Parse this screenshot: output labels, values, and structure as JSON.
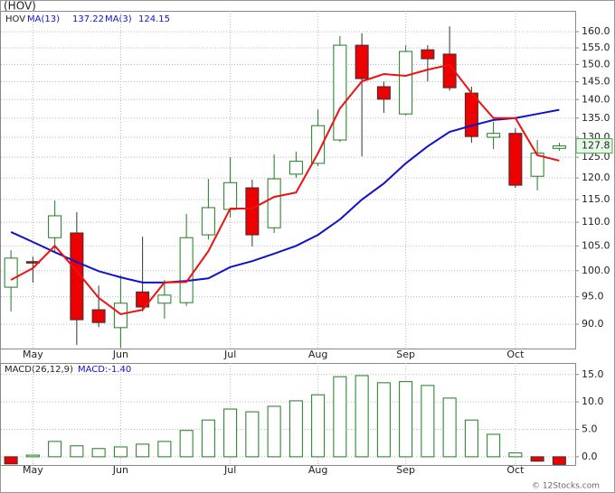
{
  "chart_data": [
    {
      "type": "candlestick",
      "title": "(HOV)",
      "name": "HOV",
      "log_scale": true,
      "grid": true,
      "categories": [
        null,
        "May",
        null,
        null,
        null,
        "Jun",
        null,
        null,
        null,
        null,
        "Jul",
        null,
        null,
        null,
        "Aug",
        null,
        null,
        null,
        "Sep",
        null,
        null,
        null,
        null,
        "Oct",
        null,
        null
      ],
      "open": [
        96.8,
        101.8,
        106.7,
        107.7,
        92.6,
        89.4,
        95.9,
        93.8,
        93.9,
        107.3,
        112.8,
        117.7,
        108.8,
        120.9,
        123.5,
        129.3,
        155.8,
        143.6,
        136.1,
        154.4,
        153.1,
        141.8,
        130.0,
        131.0,
        120.4,
        127.2
      ],
      "high": [
        104.1,
        102.8,
        114.8,
        112.2,
        97.1,
        99.1,
        106.9,
        98.2,
        111.8,
        119.8,
        125.0,
        119.6,
        125.7,
        126.4,
        137.3,
        158.6,
        159.5,
        145.1,
        155.8,
        155.8,
        161.7,
        143.6,
        134.0,
        132.3,
        129.3,
        128.6
      ],
      "low": [
        92.3,
        97.7,
        103.6,
        86.4,
        89.5,
        85.9,
        92.3,
        91.0,
        93.3,
        106.3,
        111.0,
        104.9,
        107.7,
        120.0,
        122.8,
        128.8,
        125.2,
        136.4,
        135.7,
        145.1,
        142.5,
        128.6,
        127.0,
        117.7,
        117.1,
        126.6
      ],
      "close": [
        102.5,
        101.5,
        111.4,
        90.8,
        90.3,
        93.8,
        93.1,
        95.3,
        106.7,
        113.2,
        118.9,
        107.3,
        119.8,
        124.0,
        133.0,
        155.8,
        145.9,
        140.1,
        153.9,
        151.7,
        143.3,
        130.2,
        131.0,
        118.3,
        126.0,
        127.8
      ],
      "up_color": "#1e7b1e",
      "down_color": "#ee0000",
      "series": [
        {
          "name": "MA(13)",
          "color": "#1111cc",
          "values": [
            107.9,
            105.8,
            103.7,
            101.7,
            99.9,
            98.7,
            97.7,
            97.7,
            98.0,
            98.5,
            100.7,
            101.9,
            103.4,
            105.0,
            107.3,
            110.6,
            115.0,
            118.7,
            123.5,
            127.7,
            131.4,
            133.0,
            134.5,
            135.0,
            136.1,
            137.22
          ]
        },
        {
          "name": "MA(3)",
          "color": "#ee1111",
          "values": [
            98.2,
            100.5,
            105.0,
            99.9,
            94.8,
            91.8,
            92.6,
            97.7,
            97.8,
            103.9,
            113.0,
            113.0,
            115.6,
            116.6,
            126.0,
            137.6,
            145.1,
            147.2,
            146.7,
            148.5,
            149.9,
            141.8,
            135.0,
            135.0,
            125.5,
            124.15
          ]
        }
      ],
      "ylim": [
        85.8,
        166.7
      ],
      "yticks": [
        {
          "value": 90,
          "label": "90.0"
        },
        {
          "value": 95,
          "label": "95.0"
        },
        {
          "value": 100,
          "label": "100.0"
        },
        {
          "value": 105,
          "label": "105.0"
        },
        {
          "value": 110,
          "label": "110.0"
        },
        {
          "value": 115,
          "label": "115.0"
        },
        {
          "value": 120,
          "label": "120.0"
        },
        {
          "value": 125,
          "label": "125.0"
        },
        {
          "value": 130,
          "label": "130.0"
        },
        {
          "value": 135,
          "label": "135.0"
        },
        {
          "value": 140,
          "label": "140.0"
        },
        {
          "value": 145,
          "label": "145.0"
        },
        {
          "value": 150,
          "label": "150.0"
        },
        {
          "value": 155,
          "label": "155.0"
        },
        {
          "value": 160,
          "label": "160.0"
        }
      ]
    },
    {
      "type": "bar",
      "name": "MACD(26,12,9)",
      "legend_value": "MACD:-1.40",
      "grid": true,
      "categories": [
        null,
        "May",
        null,
        null,
        null,
        "Jun",
        null,
        null,
        null,
        null,
        "Jul",
        null,
        null,
        null,
        "Aug",
        null,
        null,
        null,
        "Sep",
        null,
        null,
        null,
        null,
        "Oct",
        null,
        null
      ],
      "values": [
        -1.3,
        0.3,
        2.8,
        2.0,
        1.5,
        1.8,
        2.3,
        2.8,
        4.8,
        6.7,
        8.7,
        8.2,
        9.2,
        10.2,
        11.3,
        14.6,
        14.8,
        13.5,
        13.7,
        13.0,
        10.7,
        6.7,
        4.1,
        0.7,
        -0.8,
        -1.4
      ],
      "up_color": "#1e7b1e",
      "down_color": "#ee0000",
      "ylim": [
        -1.5,
        17.1
      ],
      "yticks": [
        {
          "value": 0,
          "label": "0.0"
        },
        {
          "value": 5,
          "label": "5.0"
        },
        {
          "value": 10,
          "label": "10.0"
        },
        {
          "value": 15,
          "label": "15.0"
        }
      ]
    }
  ]
}
